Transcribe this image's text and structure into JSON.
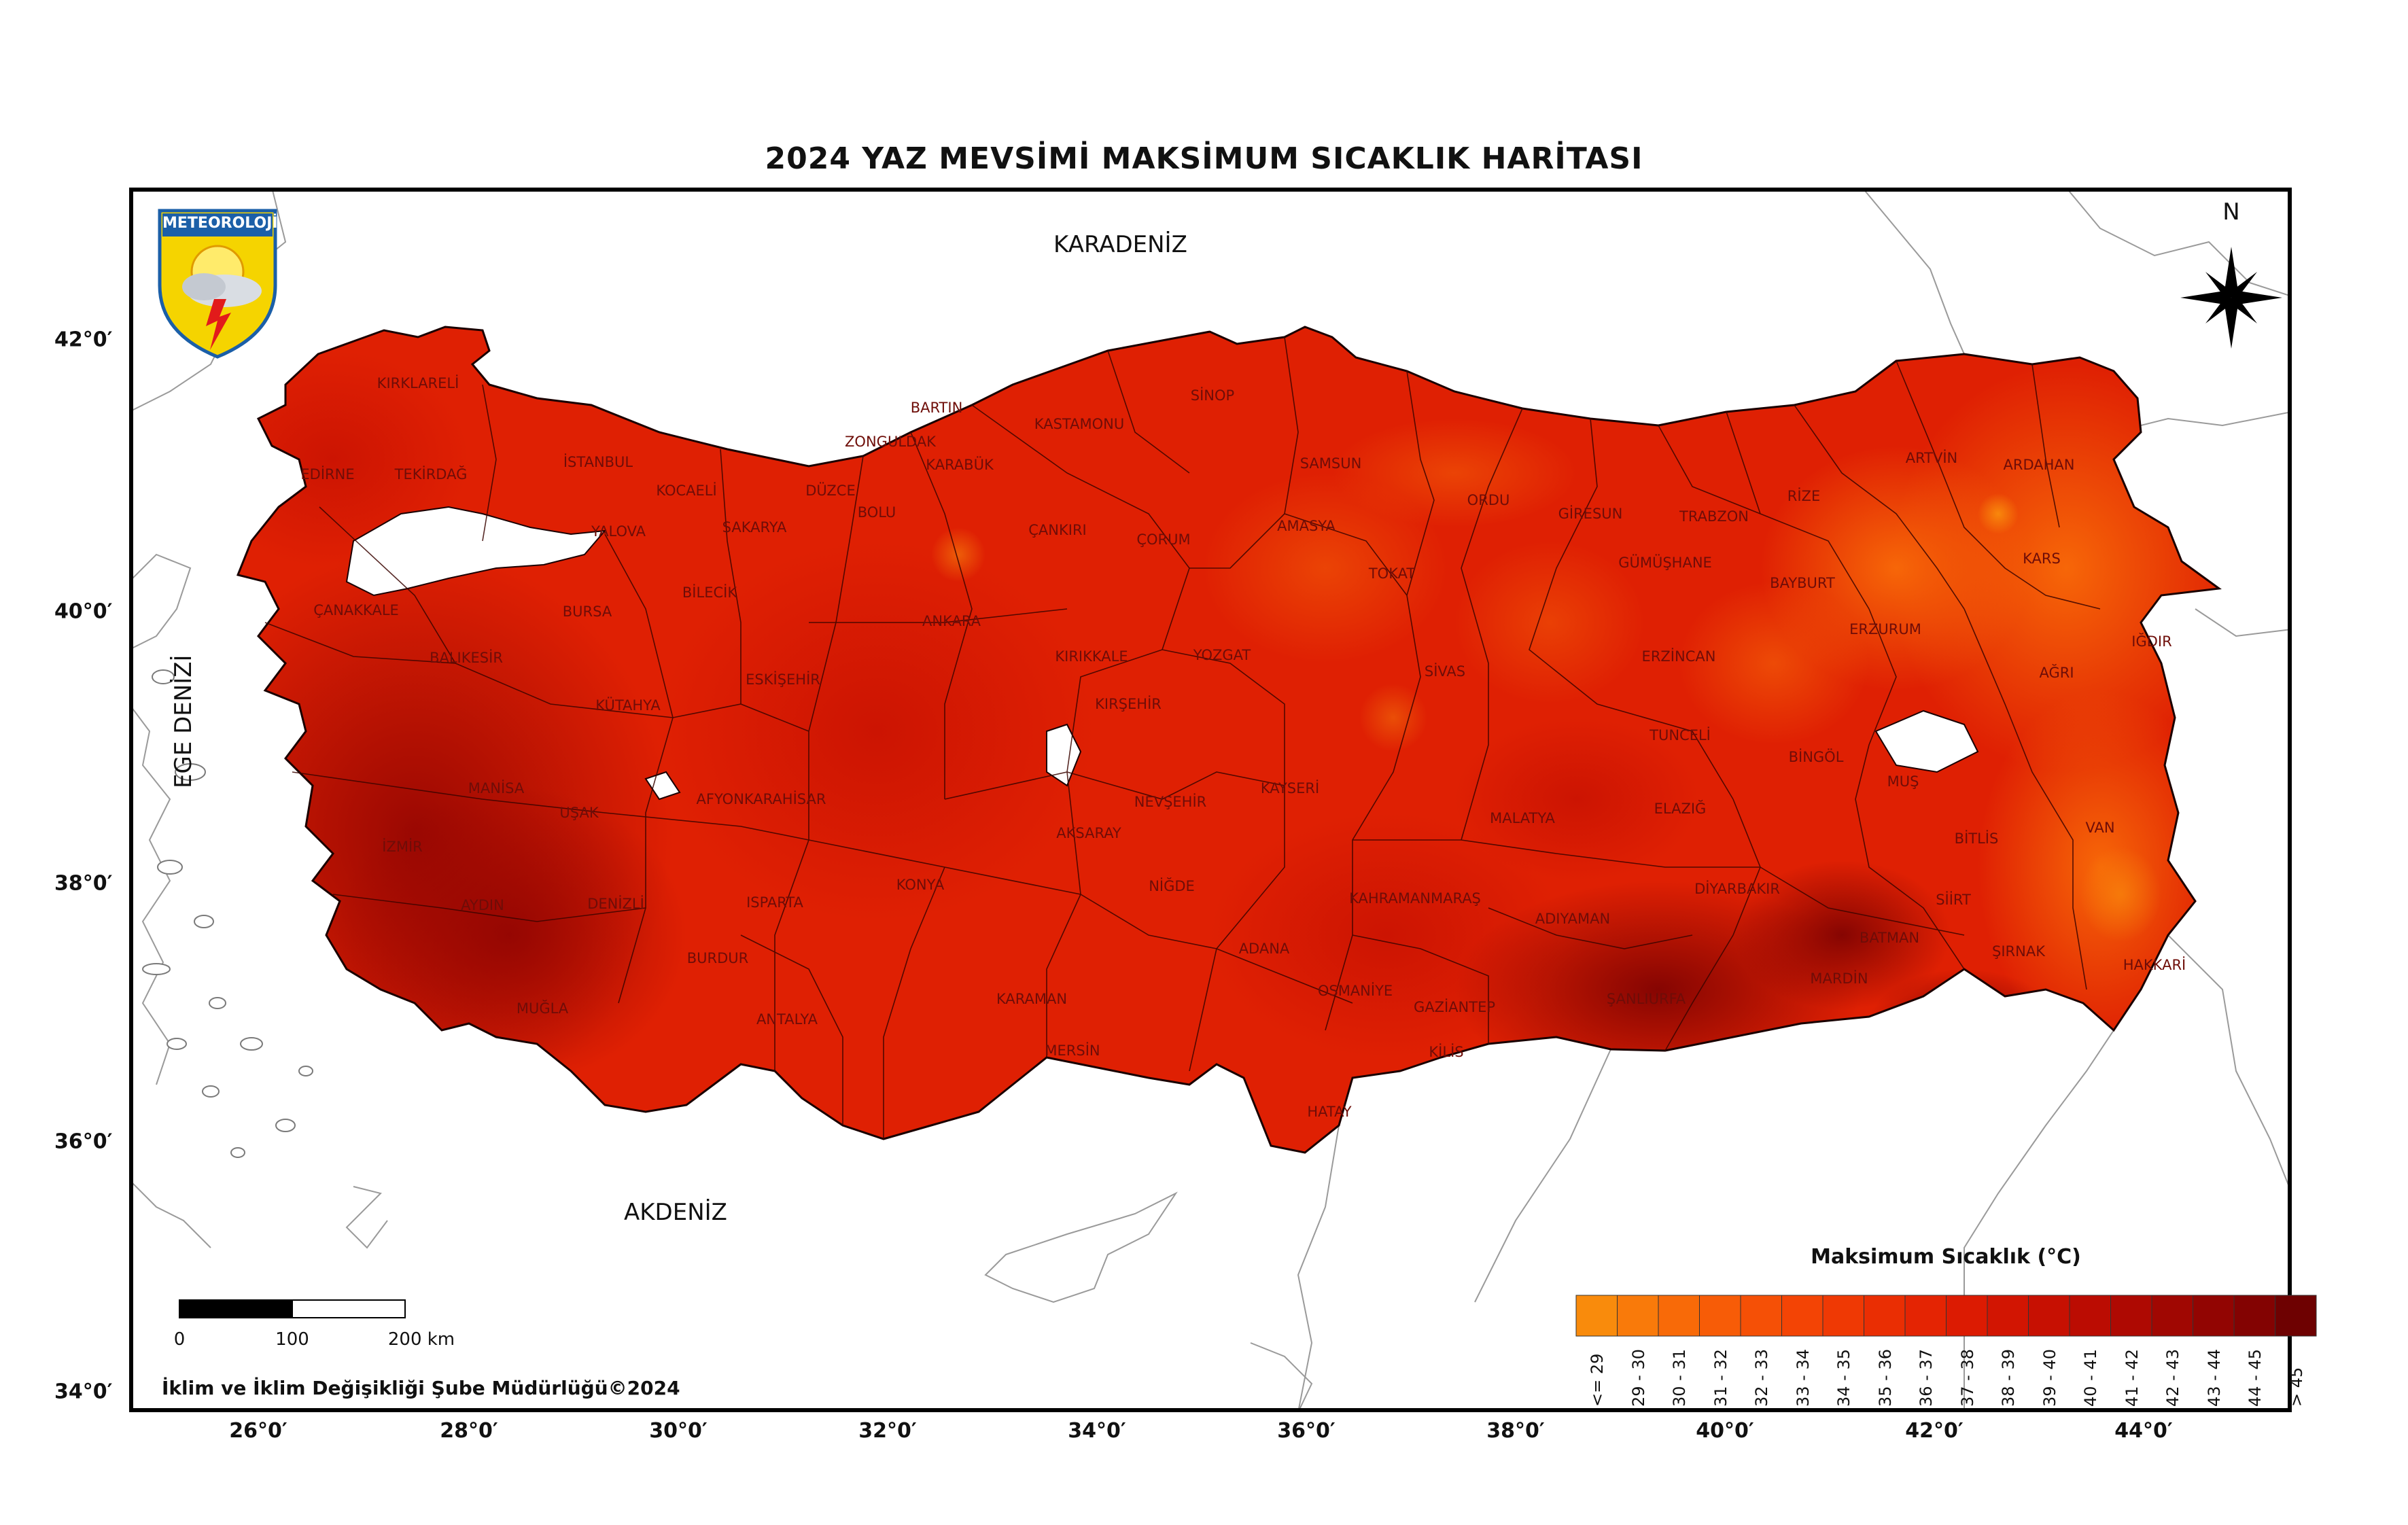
{
  "title": "2024 YAZ MEVSİMİ MAKSİMUM SICAKLIK HARİTASI",
  "seas": {
    "karadeniz": "KARADENİZ",
    "akdeniz": "AKDENİZ",
    "ege": "EGE DENİZİ"
  },
  "logo": {
    "text": "METEOROLOJİ"
  },
  "north": "N",
  "latitude_labels": [
    "42°0′",
    "40°0′",
    "38°0′",
    "36°0′",
    "34°0′"
  ],
  "longitude_labels": [
    "26°0′",
    "28°0′",
    "30°0′",
    "32°0′",
    "34°0′",
    "36°0′",
    "38°0′",
    "40°0′",
    "42°0′",
    "44°0′"
  ],
  "legend": {
    "title": "Maksimum Sıcaklık (°C)",
    "classes": [
      "<= 29",
      "29 - 30",
      "30 - 31",
      "31 - 32",
      "32 - 33",
      "33 - 34",
      "34 - 35",
      "35 - 36",
      "36 - 37",
      "37 - 38",
      "38 - 39",
      "39 - 40",
      "40 - 41",
      "41 - 42",
      "42 - 43",
      "43 - 44",
      "44 - 45",
      "> 45"
    ],
    "colors": [
      "#f98b0c",
      "#f97a0a",
      "#f86a08",
      "#f75c07",
      "#f55006",
      "#f34405",
      "#ef3904",
      "#ea2e03",
      "#e42403",
      "#dc1b02",
      "#d21502",
      "#c71002",
      "#bb0c02",
      "#ae0902",
      "#a00702",
      "#920502",
      "#830302",
      "#6e0101"
    ]
  },
  "scale": {
    "labels": [
      "0",
      "100",
      "200 km"
    ]
  },
  "credit": "İklim ve İklim Değişikliği Şube Müdürlüğü©2024",
  "provinces": [
    "KIRKLARELİ",
    "EDİRNE",
    "TEKİRDAĞ",
    "İSTANBUL",
    "KOCAELİ",
    "YALOVA",
    "SAKARYA",
    "DÜZCE",
    "BOLU",
    "ZONGULDAK",
    "BARTIN",
    "KARABÜK",
    "KASTAMONU",
    "SİNOP",
    "SAMSUN",
    "ORDU",
    "GİRESUN",
    "TRABZON",
    "RİZE",
    "ARTVİN",
    "ARDAHAN",
    "KARS",
    "IĞDIR",
    "AĞRI",
    "ERZURUM",
    "BAYBURT",
    "GÜMÜŞHANE",
    "ERZİNCAN",
    "TOKAT",
    "AMASYA",
    "ÇORUM",
    "ÇANKIRI",
    "ANKARA",
    "KIRIKKALE",
    "KIRŞEHİR",
    "YOZGAT",
    "SİVAS",
    "TUNCELİ",
    "BİNGÖL",
    "MUŞ",
    "VAN",
    "BİTLİS",
    "SİİRT",
    "BATMAN",
    "ŞIRNAK",
    "HAKKARİ",
    "MARDİN",
    "DİYARBAKIR",
    "ŞANLIURFA",
    "ADIYAMAN",
    "MALATYA",
    "ELAZIĞ",
    "KAHRAMANMARAŞ",
    "GAZİANTEP",
    "KİLİS",
    "OSMANİYE",
    "HATAY",
    "ADANA",
    "MERSİN",
    "KARAMAN",
    "NİĞDE",
    "AKSARAY",
    "NEVŞEHİR",
    "KAYSERİ",
    "KONYA",
    "ANTALYA",
    "BURDUR",
    "ISPARTA",
    "AFYONKARAHİSAR",
    "ESKİŞEHİR",
    "BİLECİK",
    "BURSA",
    "BALIKESİR",
    "ÇANAKKALE",
    "KÜTAHYA",
    "UŞAK",
    "MANİSA",
    "İZMİR",
    "AYDIN",
    "DENİZLİ",
    "MUĞLA"
  ]
}
